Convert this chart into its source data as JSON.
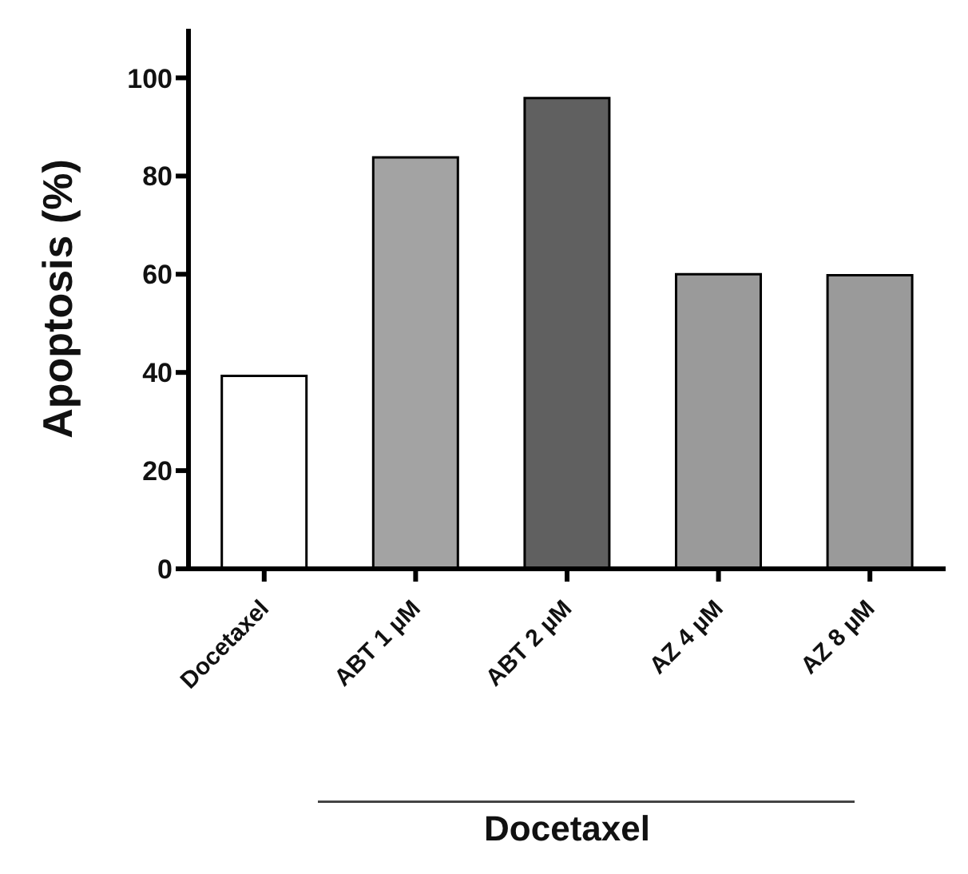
{
  "chart_data": {
    "type": "bar",
    "xlabel": "Docetaxel",
    "ylabel": "Apoptosis (%)",
    "categories": [
      "Docetaxel",
      "ABT 1 µM",
      "ABT 2 µM",
      "AZ 4 µM",
      "AZ 8 µM"
    ],
    "values": [
      39.3,
      83.8,
      95.9,
      60.0,
      59.8
    ],
    "colors": [
      "#ffffff",
      "#a3a3a3",
      "#606060",
      "#9a9a9a",
      "#9a9a9a"
    ],
    "ylim": [
      0,
      110
    ],
    "yticks": [
      0,
      20,
      40,
      60,
      80,
      100
    ],
    "grid": false,
    "legend": false
  }
}
